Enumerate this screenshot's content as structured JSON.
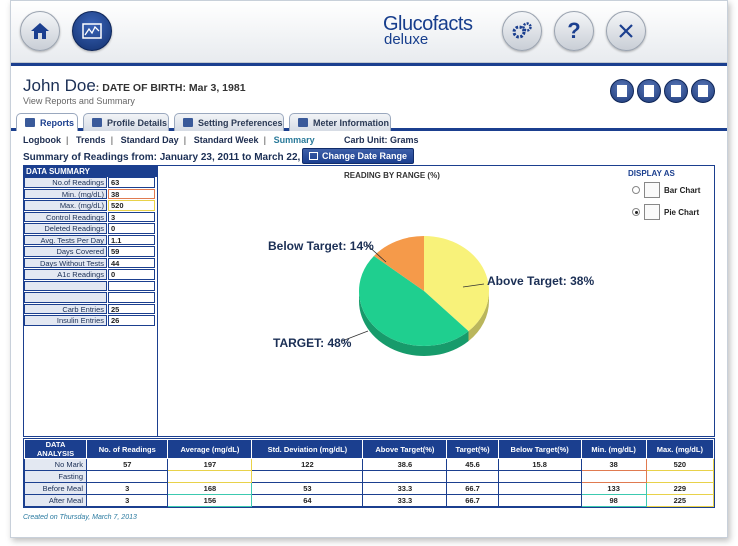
{
  "app": {
    "logo_line1": "Glucofacts",
    "logo_line2": "deluxe"
  },
  "toolbar": {
    "home_icon": "home-icon",
    "reports_icon": "reports-icon",
    "settings_icon": "gear-icon",
    "help_icon": "help-icon",
    "close_icon": "close-icon"
  },
  "patient": {
    "name": "John Doe",
    "dob_label": ": DATE OF BIRTH: Mar 3, 1981",
    "subtitle": "View Reports and Summary"
  },
  "tabs": [
    {
      "label": "Reports",
      "icon": "reports-icon"
    },
    {
      "label": "Profile Details",
      "icon": "profile-icon"
    },
    {
      "label": "Setting Preferences",
      "icon": "gear-icon"
    },
    {
      "label": "Meter Information",
      "icon": "meter-icon"
    }
  ],
  "subnav": [
    "Logbook",
    "Trends",
    "Standard Day",
    "Standard Week",
    "Summary"
  ],
  "carb_unit": "Carb Unit: Grams",
  "summary_range": "Summary of Readings from: January 23, 2011 to March 22, 2011",
  "change_date_label": "Change Date Range",
  "data_summary": {
    "title": "DATA SUMMARY",
    "rows": [
      {
        "label": "No.of Readings",
        "value": "63"
      },
      {
        "label": "Min. (mg/dL)",
        "value": "38"
      },
      {
        "label": "Max. (mg/dL)",
        "value": "520"
      },
      {
        "label": "Control Readings",
        "value": "3"
      },
      {
        "label": "Deleted Readings",
        "value": "0"
      },
      {
        "label": "Avg. Tests Per Day",
        "value": "1.1"
      },
      {
        "label": "Days Covered",
        "value": "59"
      },
      {
        "label": "Days Without Tests",
        "value": "44"
      },
      {
        "label": "A1c Readings",
        "value": "0"
      },
      {
        "label": "",
        "value": ""
      },
      {
        "label": "",
        "value": ""
      },
      {
        "label": "Carb Entries",
        "value": "25"
      },
      {
        "label": "Insulin Entries",
        "value": "26"
      }
    ]
  },
  "chart_data": {
    "type": "pie",
    "title": "READING BY RANGE (%)",
    "slices": [
      {
        "name": "Above Target",
        "value": 38,
        "color": "#f8f27a",
        "label": "Above Target: 38%"
      },
      {
        "name": "TARGET",
        "value": 48,
        "color": "#1fcf8f",
        "label": "TARGET: 48%"
      },
      {
        "name": "Below Target",
        "value": 14,
        "color": "#f59a4a",
        "label": "Below Target: 14%"
      }
    ]
  },
  "display_as": {
    "title": "DISPLAY AS",
    "options": [
      {
        "label": "Bar Chart",
        "selected": false
      },
      {
        "label": "Pie Chart",
        "selected": true
      }
    ]
  },
  "analysis": {
    "headers": [
      "DATA ANALYSIS",
      "No. of Readings",
      "Average (mg/dL)",
      "Std. Deviation (mg/dL)",
      "Above Target(%)",
      "Target(%)",
      "Below Target(%)",
      "Min. (mg/dL)",
      "Max. (mg/dL)"
    ],
    "rows": [
      {
        "label": "No Mark",
        "cells": [
          "57",
          "197",
          "122",
          "38.6",
          "45.6",
          "15.8",
          "38",
          "520"
        ]
      },
      {
        "label": "Fasting",
        "cells": [
          "",
          "",
          "",
          "",
          "",
          "",
          "",
          ""
        ]
      },
      {
        "label": "Before Meal",
        "cells": [
          "3",
          "168",
          "53",
          "33.3",
          "66.7",
          "",
          "133",
          "229"
        ]
      },
      {
        "label": "After Meal",
        "cells": [
          "3",
          "156",
          "64",
          "33.3",
          "66.7",
          "",
          "98",
          "225"
        ]
      }
    ]
  },
  "footer": "Created on Thursday, March 7, 2013"
}
